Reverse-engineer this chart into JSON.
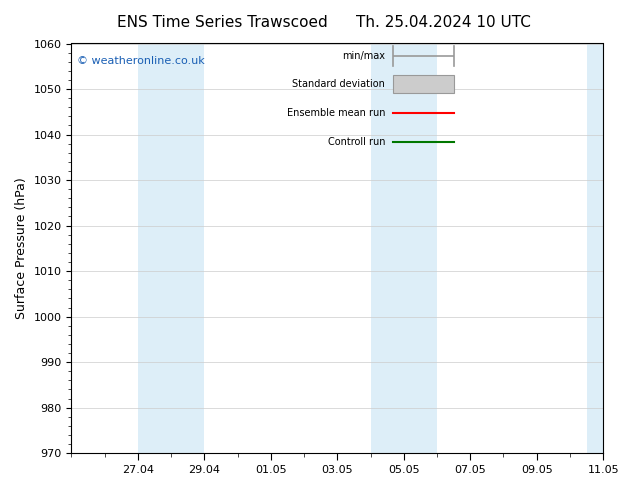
{
  "title_left": "ENS Time Series Trawscoed",
  "title_right": "Th. 25.04.2024 10 UTC",
  "ylabel": "Surface Pressure (hPa)",
  "ylim": [
    970,
    1060
  ],
  "yticks": [
    970,
    980,
    990,
    1000,
    1010,
    1020,
    1030,
    1040,
    1050,
    1060
  ],
  "x_tick_labels": [
    "27.04",
    "29.04",
    "01.05",
    "03.05",
    "05.05",
    "07.05",
    "09.05",
    "11.05"
  ],
  "shaded_color": "#ddeef8",
  "watermark": "© weatheronline.co.uk",
  "watermark_color": "#1a5fb4",
  "legend_entries": [
    "min/max",
    "Standard deviation",
    "Ensemble mean run",
    "Controll run"
  ],
  "legend_line_colors": [
    "#999999",
    "#cccccc",
    "#ff0000",
    "#007700"
  ],
  "background_color": "#ffffff",
  "grid_color": "#cccccc",
  "title_fontsize": 11,
  "ylabel_fontsize": 9,
  "tick_fontsize": 8
}
